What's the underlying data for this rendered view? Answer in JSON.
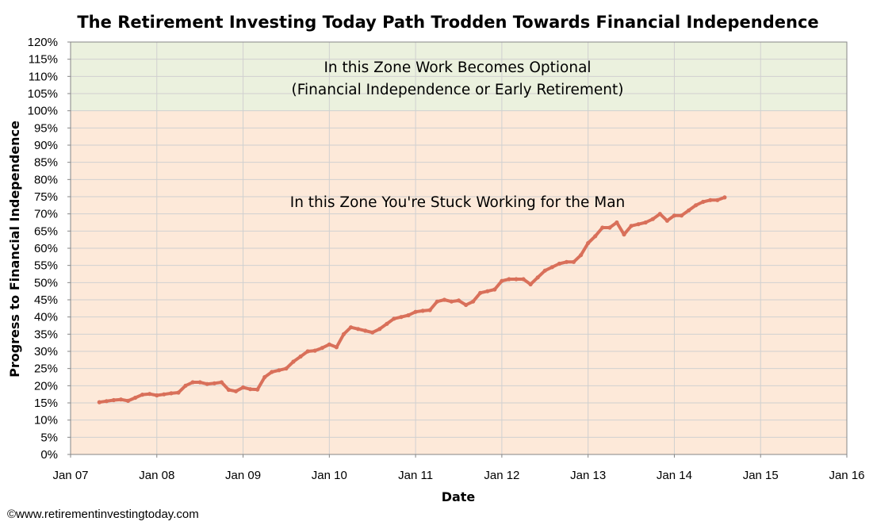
{
  "chart_data": {
    "type": "line",
    "title": "The Retirement Investing Today Path Trodden Towards Financial Independence",
    "xlabel": "Date",
    "ylabel": "Progress to Financial Independence",
    "x_ticks": [
      "Jan 07",
      "Jan 08",
      "Jan 09",
      "Jan 10",
      "Jan 11",
      "Jan 12",
      "Jan 13",
      "Jan 14",
      "Jan 15",
      "Jan 16"
    ],
    "y_ticks": [
      "0%",
      "5%",
      "10%",
      "15%",
      "20%",
      "25%",
      "30%",
      "35%",
      "40%",
      "45%",
      "50%",
      "55%",
      "60%",
      "65%",
      "70%",
      "75%",
      "80%",
      "85%",
      "90%",
      "95%",
      "100%",
      "105%",
      "110%",
      "115%",
      "120%"
    ],
    "xlim": [
      "Jan 07",
      "Jan 16"
    ],
    "ylim": [
      0,
      120
    ],
    "grid": true,
    "zones": [
      {
        "name": "work-optional",
        "from": 100,
        "to": 120,
        "color": "#ebf1de",
        "label_lines": [
          "In this Zone Work Becomes Optional",
          "(Financial Independence or Early Retirement)"
        ]
      },
      {
        "name": "stuck-working",
        "from": 0,
        "to": 100,
        "color": "#fde9d9",
        "label_lines": [
          "In this Zone You're Stuck Working for the Man"
        ]
      }
    ],
    "series": [
      {
        "color": "#d9705a",
        "x": [
          "2007-05",
          "2007-06",
          "2007-07",
          "2007-08",
          "2007-09",
          "2007-10",
          "2007-11",
          "2007-12",
          "2008-01",
          "2008-02",
          "2008-03",
          "2008-04",
          "2008-05",
          "2008-06",
          "2008-07",
          "2008-08",
          "2008-09",
          "2008-10",
          "2008-11",
          "2008-12",
          "2009-01",
          "2009-02",
          "2009-03",
          "2009-04",
          "2009-05",
          "2009-06",
          "2009-07",
          "2009-08",
          "2009-09",
          "2009-10",
          "2009-11",
          "2009-12",
          "2010-01",
          "2010-02",
          "2010-03",
          "2010-04",
          "2010-05",
          "2010-06",
          "2010-07",
          "2010-08",
          "2010-09",
          "2010-10",
          "2010-11",
          "2010-12",
          "2011-01",
          "2011-02",
          "2011-03",
          "2011-04",
          "2011-05",
          "2011-06",
          "2011-07",
          "2011-08",
          "2011-09",
          "2011-10",
          "2011-11",
          "2011-12",
          "2012-01",
          "2012-02",
          "2012-03",
          "2012-04",
          "2012-05",
          "2012-06",
          "2012-07",
          "2012-08",
          "2012-09",
          "2012-10",
          "2012-11",
          "2012-12",
          "2013-01",
          "2013-02",
          "2013-03",
          "2013-04",
          "2013-05",
          "2013-06",
          "2013-07",
          "2013-08",
          "2013-09",
          "2013-10",
          "2013-11",
          "2013-12",
          "2014-01",
          "2014-02",
          "2014-03",
          "2014-04",
          "2014-05",
          "2014-06",
          "2014-07",
          "2014-08"
        ],
        "values": [
          15.2,
          15.5,
          15.8,
          16.0,
          15.6,
          16.5,
          17.4,
          17.6,
          17.2,
          17.5,
          17.8,
          18.0,
          20.0,
          21.0,
          21.0,
          20.5,
          20.7,
          21.0,
          18.8,
          18.4,
          19.5,
          19.0,
          18.9,
          22.5,
          24.0,
          24.5,
          25.0,
          27.0,
          28.5,
          30.0,
          30.2,
          31.0,
          32.0,
          31.2,
          35.0,
          37.0,
          36.5,
          36.0,
          35.5,
          36.5,
          38.0,
          39.5,
          40.0,
          40.5,
          41.5,
          41.8,
          42.0,
          44.5,
          45.0,
          44.5,
          44.8,
          43.5,
          44.5,
          47.0,
          47.5,
          48.0,
          50.5,
          51.0,
          51.0,
          51.0,
          49.5,
          51.5,
          53.5,
          54.5,
          55.5,
          56.0,
          56.0,
          58.0,
          61.5,
          63.5,
          66.0,
          66.0,
          67.5,
          64.0,
          66.5,
          67.0,
          67.5,
          68.5,
          70.0,
          68.0,
          69.5,
          69.5,
          71.0,
          72.5,
          73.5,
          74.0,
          74.0,
          74.8
        ]
      }
    ]
  },
  "footer": "©www.retirementinvestingtoday.com"
}
